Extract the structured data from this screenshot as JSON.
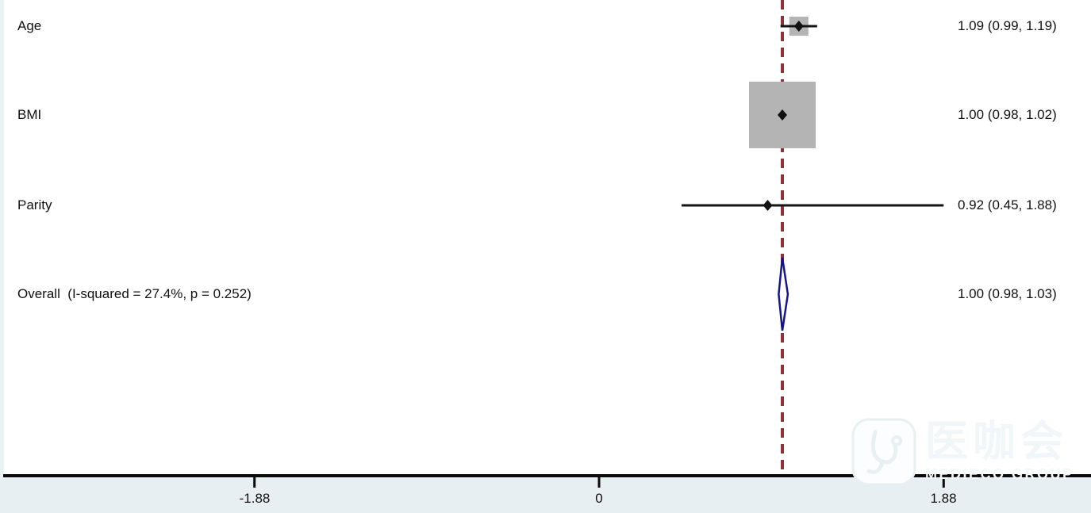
{
  "chart_data": {
    "type": "forest",
    "title": "",
    "rows": [
      {
        "label": "Age",
        "estimate": 1.09,
        "ci_low": 0.99,
        "ci_high": 1.19,
        "display": "1.09 (0.99, 1.19)",
        "marker": "square",
        "marker_size_px": 24
      },
      {
        "label": "BMI",
        "estimate": 1.0,
        "ci_low": 0.98,
        "ci_high": 1.02,
        "display": "1.00 (0.98, 1.02)",
        "marker": "square",
        "marker_size_px": 84
      },
      {
        "label": "Parity",
        "estimate": 0.92,
        "ci_low": 0.45,
        "ci_high": 1.88,
        "display": "0.92 (0.45, 1.88)",
        "marker": "square",
        "marker_size_px": 0
      },
      {
        "label": "Overall  (I-squared = 27.4%, p = 0.252)",
        "estimate": 1.0,
        "ci_low": 0.98,
        "ci_high": 1.03,
        "display": "1.00 (0.98, 1.03)",
        "marker": "diamond"
      }
    ],
    "axis": {
      "tick_labels": [
        "-1.88",
        "0",
        "1.88"
      ],
      "tick_values": [
        -1.88,
        0,
        1.88
      ],
      "scale": "linear",
      "grid": false,
      "null_line_value": 1.0
    },
    "legend": null,
    "colors": {
      "weight_square": "#b4b4b4",
      "ci_line": "#151515",
      "point_marker": "#111111",
      "null_line": "#8e333a",
      "overall_diamond_stroke": "#16168c",
      "overall_diamond_fill": "#ffffff",
      "axis_line": "#0a0a0a",
      "axis_band": "#e8eff2",
      "text": "#111111"
    }
  },
  "watermark": {
    "logo_icon": "stethoscope-icon",
    "text": "医咖会",
    "subtext": "MEDIECO GROUP"
  }
}
